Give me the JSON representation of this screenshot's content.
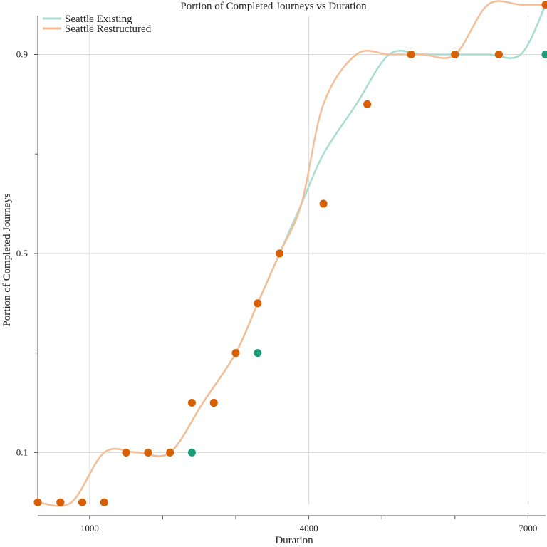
{
  "chart_data": {
    "type": "scatter",
    "title": "Portion of Completed Journeys vs Duration",
    "xlabel": "Duration",
    "ylabel": "Portion of Completed Journeys",
    "x_ticks": [
      1000,
      4000,
      7000
    ],
    "x_minor_ticks": [
      2000,
      3000,
      5000,
      6000
    ],
    "y_ticks": [
      0.1,
      0.5,
      0.9
    ],
    "xlim": [
      290,
      7240
    ],
    "ylim": [
      -0.004,
      0.978
    ],
    "grid": true,
    "legend_position": "top-left",
    "series": [
      {
        "name": "Seattle Existing",
        "point_color": "#1b9e77",
        "line_color": "#a8ddd0",
        "x": [
          290,
          600,
          900,
          1200,
          1500,
          1800,
          2100,
          2400,
          2700,
          3000,
          3300,
          3600,
          4200,
          4800,
          5400,
          6000,
          6600,
          7240
        ],
        "y": [
          0.0,
          0.0,
          0.0,
          0.0,
          0.1,
          0.1,
          0.1,
          0.1,
          0.2,
          0.3,
          0.3,
          0.5,
          0.6,
          0.8,
          0.9,
          0.9,
          0.9,
          0.9
        ],
        "fit_x": [
          290,
          750,
          1200,
          1650,
          2100,
          2550,
          3000,
          3300,
          3600,
          3900,
          4200,
          4650,
          5100,
          5550,
          6000,
          6450,
          6900,
          7240
        ],
        "fit_y": [
          0.0,
          0.0,
          0.1,
          0.1,
          0.1,
          0.2,
          0.3,
          0.4,
          0.5,
          0.6,
          0.7,
          0.8,
          0.9,
          0.9,
          0.9,
          0.9,
          0.9,
          1.0
        ]
      },
      {
        "name": "Seattle Restructured",
        "point_color": "#d95f02",
        "line_color": "#f4be99",
        "x": [
          290,
          600,
          900,
          1200,
          1500,
          1800,
          2100,
          2400,
          2700,
          3000,
          3300,
          3600,
          4200,
          4800,
          5400,
          6000,
          6600,
          7240
        ],
        "y": [
          0.0,
          0.0,
          0.0,
          0.0,
          0.1,
          0.1,
          0.1,
          0.2,
          0.2,
          0.3,
          0.4,
          0.5,
          0.6,
          0.8,
          0.9,
          0.9,
          0.9,
          1.0
        ],
        "fit_x": [
          290,
          750,
          1200,
          1650,
          2100,
          2550,
          3000,
          3300,
          3600,
          3900,
          4200,
          4650,
          5100,
          5550,
          6000,
          6450,
          6900,
          7240
        ],
        "fit_y": [
          0.0,
          0.0,
          0.1,
          0.1,
          0.1,
          0.2,
          0.3,
          0.4,
          0.5,
          0.6,
          0.8,
          0.9,
          0.9,
          0.9,
          0.9,
          1.0,
          1.0,
          1.0
        ]
      }
    ]
  }
}
